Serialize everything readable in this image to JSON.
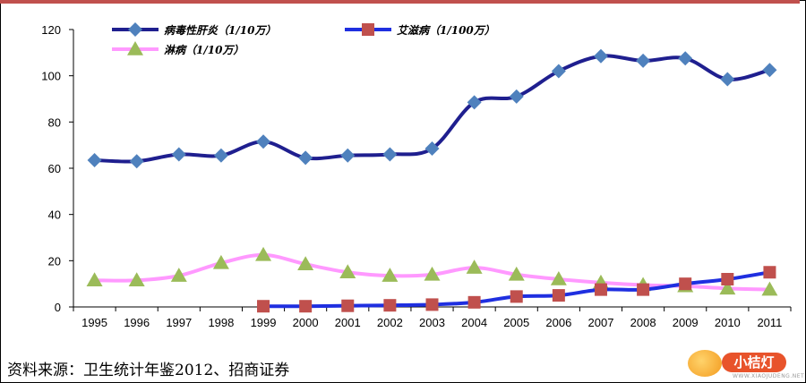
{
  "chart_data": {
    "type": "line",
    "x": [
      "1995",
      "1996",
      "1997",
      "1998",
      "1999",
      "2000",
      "2001",
      "2002",
      "2003",
      "2004",
      "2005",
      "2006",
      "2007",
      "2008",
      "2009",
      "2010",
      "2011"
    ],
    "ylim": [
      0,
      120
    ],
    "yticks": [
      0,
      20,
      40,
      60,
      80,
      100,
      120
    ],
    "grid": false,
    "legend_position": "top-left",
    "series": [
      {
        "name": "病毒性肝炎（1/10万）",
        "color": "#1f1f8f",
        "marker": "diamond",
        "marker_color": "#4f81bd",
        "values": [
          63.5,
          63,
          66,
          65.5,
          71.5,
          64.5,
          65.5,
          66,
          68.5,
          88.5,
          91,
          102,
          108.5,
          106.5,
          107.5,
          98.5,
          102.5
        ]
      },
      {
        "name": "艾滋病（1/100万）",
        "color": "#1f2fe0",
        "marker": "square",
        "marker_color": "#c0504d",
        "values": [
          null,
          null,
          null,
          null,
          0.3,
          0.3,
          0.5,
          0.7,
          1,
          2,
          4.5,
          5,
          7.5,
          7.5,
          10,
          12,
          15
        ]
      },
      {
        "name": "淋病（1/10万）",
        "color": "#ff99ff",
        "marker": "triangle",
        "marker_color": "#9bbb59",
        "values": [
          11.5,
          11.5,
          13.5,
          19,
          22.5,
          18.5,
          15,
          13.5,
          14,
          17,
          14,
          12,
          10.5,
          9.5,
          9,
          8,
          7.5
        ]
      }
    ]
  },
  "source": "资料来源：卫生统计年鉴2012、招商证券",
  "watermark": {
    "text": "小桔灯",
    "url": "WWW.XIAOJUDENG.NET"
  }
}
